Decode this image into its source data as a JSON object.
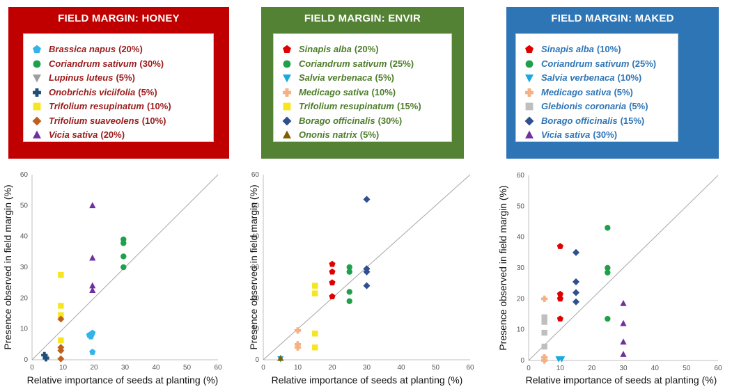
{
  "chart_data": [
    {
      "type": "scatter",
      "title": "FIELD MARGIN: HONEY",
      "box_color": "#c00000",
      "legend_text_color": "#9b1b1b",
      "xlabel": "Relative importance of seeds at planting (%)",
      "ylabel": "Presence observed in field margin (%)",
      "xlim": [
        0,
        60
      ],
      "ylim": [
        0,
        60
      ],
      "x_ticks": [
        "0",
        "10",
        "20",
        "30",
        "40",
        "50",
        "60"
      ],
      "y_ticks": [
        "0",
        "10",
        "20",
        "30",
        "40",
        "50",
        "60"
      ],
      "reference_line": "y = x",
      "series": [
        {
          "name": "Brassica napus",
          "pct": "(20%)",
          "marker": "pentagon",
          "color": "#33b4e8",
          "points": [
            [
              18.5,
              8
            ],
            [
              19.5,
              8.7
            ],
            [
              19,
              7.5
            ],
            [
              19.5,
              2.5
            ]
          ]
        },
        {
          "name": "Coriandrum sativum",
          "pct": "(30%)",
          "marker": "circle",
          "color": "#1fa04a",
          "points": [
            [
              29.5,
              39
            ],
            [
              29.5,
              37.8
            ],
            [
              29.5,
              33.5
            ],
            [
              29.5,
              30
            ]
          ]
        },
        {
          "name": "Lupinus luteus",
          "pct": "(5%)",
          "marker": "triangle-down",
          "color": "#9e9e9e",
          "points": [
            [
              4.5,
              0.5
            ]
          ]
        },
        {
          "name": "Onobrichis viciifolia",
          "pct": "(5%)",
          "marker": "cross",
          "color": "#1f4e79",
          "points": [
            [
              4,
              1.5
            ],
            [
              4.5,
              0.5
            ]
          ]
        },
        {
          "name": "Trifolium resupinatum",
          "pct": "(10%)",
          "marker": "square",
          "color": "#f7e51e",
          "points": [
            [
              9.3,
              27.5
            ],
            [
              9.3,
              17.5
            ],
            [
              9.3,
              14.5
            ],
            [
              9.3,
              6.3
            ]
          ]
        },
        {
          "name": "Trifolium suaveolens",
          "pct": "(10%)",
          "marker": "diamond",
          "color": "#c0601f",
          "points": [
            [
              9.3,
              13.2
            ],
            [
              9.3,
              4
            ],
            [
              9.3,
              3
            ],
            [
              9.3,
              0.3
            ]
          ]
        },
        {
          "name": "Vicia sativa",
          "pct": "(20%)",
          "marker": "triangle-up",
          "color": "#7030a0",
          "points": [
            [
              19.5,
              50
            ],
            [
              19.5,
              33
            ],
            [
              19.5,
              24
            ],
            [
              19.5,
              22.5
            ]
          ]
        }
      ]
    },
    {
      "type": "scatter",
      "title": "FIELD MARGIN: ENVIR",
      "box_color": "#548235",
      "legend_text_color": "#4d7d2a",
      "xlabel": "Relative importance of seeds at planting (%)",
      "ylabel": "Presence observed in field margin (%)",
      "xlim": [
        0,
        60
      ],
      "ylim": [
        0,
        60
      ],
      "x_ticks": [
        "0",
        "10",
        "20",
        "30",
        "40",
        "50",
        "60"
      ],
      "y_ticks": [
        "0",
        "10",
        "20",
        "30",
        "40",
        "50",
        "60"
      ],
      "reference_line": "y = x",
      "series": [
        {
          "name": "Sinapis alba",
          "pct": "(20%)",
          "marker": "pentagon",
          "color": "#e00000",
          "points": [
            [
              20,
              31
            ],
            [
              20,
              28.5
            ],
            [
              20,
              25
            ],
            [
              20,
              20.5
            ]
          ]
        },
        {
          "name": "Coriandrum sativum",
          "pct": "(25%)",
          "marker": "circle",
          "color": "#1fa04a",
          "points": [
            [
              25,
              30
            ],
            [
              25,
              28.5
            ],
            [
              25,
              22
            ],
            [
              25,
              19
            ]
          ]
        },
        {
          "name": "Salvia verbenaca",
          "pct": "(5%)",
          "marker": "triangle-down",
          "color": "#17a9e0",
          "points": [
            [
              5,
              0.3
            ]
          ]
        },
        {
          "name": "Medicago sativa",
          "pct": "(10%)",
          "marker": "cross",
          "color": "#f4b183",
          "points": [
            [
              10,
              9.5
            ],
            [
              10,
              5
            ],
            [
              10,
              4
            ]
          ]
        },
        {
          "name": "Trifolium resupinatum",
          "pct": "(15%)",
          "marker": "square",
          "color": "#f7e51e",
          "points": [
            [
              15,
              24
            ],
            [
              15,
              21.5
            ],
            [
              15,
              8.5
            ],
            [
              15,
              4
            ]
          ]
        },
        {
          "name": "Borago officinalis",
          "pct": "(30%)",
          "marker": "diamond",
          "color": "#2f4f8f",
          "points": [
            [
              30,
              52
            ],
            [
              30,
              29.5
            ],
            [
              30,
              28.5
            ],
            [
              30,
              24
            ]
          ]
        },
        {
          "name": "Ononis natrix",
          "pct": "(5%)",
          "marker": "triangle-up",
          "color": "#7f6000",
          "points": [
            [
              5,
              0.5
            ]
          ]
        }
      ]
    },
    {
      "type": "scatter",
      "title": "FIELD MARGIN: MAKED",
      "box_color": "#2e75b6",
      "legend_text_color": "#2e75b6",
      "xlabel": "Relative importance of seeds at planting (%)",
      "ylabel": "Presence observed in field margin (%)",
      "xlim": [
        0,
        60
      ],
      "ylim": [
        0,
        60
      ],
      "x_ticks": [
        "0",
        "10",
        "20",
        "30",
        "40",
        "50",
        "60"
      ],
      "y_ticks": [
        "0",
        "10",
        "20",
        "30",
        "40",
        "50",
        "60"
      ],
      "reference_line": "y = x",
      "series": [
        {
          "name": "Sinapis alba",
          "pct": "(10%)",
          "marker": "pentagon",
          "color": "#e00000",
          "points": [
            [
              10,
              37
            ],
            [
              10,
              21.5
            ],
            [
              10,
              20
            ],
            [
              10,
              13.5
            ]
          ]
        },
        {
          "name": "Coriandrum sativum",
          "pct": "(25%)",
          "marker": "circle",
          "color": "#1fa04a",
          "points": [
            [
              25,
              43
            ],
            [
              25,
              30
            ],
            [
              25,
              28.5
            ],
            [
              25,
              13.5
            ]
          ]
        },
        {
          "name": "Salvia verbenaca",
          "pct": "(10%)",
          "marker": "triangle-down",
          "color": "#17a9e0",
          "points": [
            [
              9.5,
              0.5
            ],
            [
              10.5,
              0.5
            ]
          ]
        },
        {
          "name": "Medicago sativa",
          "pct": "(5%)",
          "marker": "cross",
          "color": "#f4b183",
          "points": [
            [
              5,
              20
            ],
            [
              5,
              1
            ],
            [
              5,
              0
            ]
          ]
        },
        {
          "name": "Glebionis coronaria",
          "pct": "(5%)",
          "marker": "square",
          "color": "#bfbfbf",
          "points": [
            [
              5,
              14
            ],
            [
              5,
              12.5
            ],
            [
              5,
              9
            ],
            [
              5,
              4.5
            ]
          ]
        },
        {
          "name": "Borago officinalis",
          "pct": "(15%)",
          "marker": "diamond",
          "color": "#2f4f8f",
          "points": [
            [
              15,
              35
            ],
            [
              15,
              25.5
            ],
            [
              15,
              22
            ],
            [
              15,
              19
            ]
          ]
        },
        {
          "name": "Vicia sativa",
          "pct": "(30%)",
          "marker": "triangle-up",
          "color": "#7030a0",
          "points": [
            [
              30,
              18.5
            ],
            [
              30,
              12
            ],
            [
              30,
              6
            ],
            [
              30,
              2
            ]
          ]
        }
      ]
    }
  ]
}
